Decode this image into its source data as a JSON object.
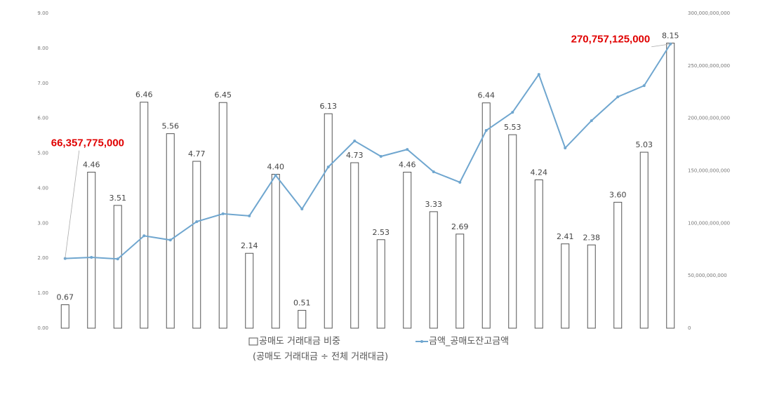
{
  "chart_data": {
    "type": "bar",
    "categories": [
      null,
      null,
      null,
      null,
      null,
      null,
      null,
      null,
      null,
      null,
      null,
      null,
      null,
      null,
      null,
      null,
      null,
      null,
      null,
      null,
      null,
      null,
      null,
      null
    ],
    "series": [
      {
        "name": "공매도 거래대금 비중",
        "color": "#555555",
        "values": [
          0.67,
          4.46,
          3.51,
          6.46,
          5.56,
          4.77,
          6.45,
          2.14,
          4.4,
          0.51,
          6.13,
          4.73,
          2.53,
          4.46,
          3.33,
          2.69,
          6.44,
          5.53,
          4.24,
          2.41,
          2.38,
          3.6,
          5.03,
          8.15
        ],
        "value_labels": [
          "0.67",
          "4.46",
          "3.51",
          "6.46",
          "5.56",
          "4.77",
          "6.45",
          "2.14",
          "4.40",
          "0.51",
          "6.13",
          "4.73",
          "2.53",
          "4.46",
          "3.33",
          "2.69",
          "6.44",
          "5.53",
          "4.24",
          "2.41",
          "2.38",
          "3.60",
          "5.03",
          "8.15"
        ]
      },
      {
        "name": "금액_공매도잔고금액",
        "color": "#6fa6cf",
        "type": "line",
        "axis": "y2",
        "values": [
          66357775000,
          67500000000,
          66000000000,
          88000000000,
          84000000000,
          101500000000,
          109000000000,
          107000000000,
          145600000000,
          113600000000,
          153600000000,
          178400000000,
          163700000000,
          170300000000,
          149000000000,
          139000000000,
          188400000000,
          205700000000,
          241800000000,
          171700000000,
          197700000000,
          220400000000,
          231100000000,
          270757125000
        ],
        "value_labels": [
          "66,357,775,000",
          null,
          null,
          null,
          null,
          null,
          null,
          null,
          null,
          null,
          null,
          null,
          null,
          null,
          null,
          null,
          null,
          null,
          null,
          null,
          null,
          null,
          null,
          "270,757,125,000"
        ]
      }
    ],
    "legend_note": "(공매도 거래대금 ÷ 전체 거래대금)",
    "ylim": [
      0,
      9
    ],
    "yticks": [
      {
        "value": 0,
        "label": "0.00"
      },
      {
        "value": 1,
        "label": "1.00"
      },
      {
        "value": 2,
        "label": "2.00"
      },
      {
        "value": 3,
        "label": "3.00"
      },
      {
        "value": 4,
        "label": "4.00"
      },
      {
        "value": 5,
        "label": "5.00"
      },
      {
        "value": 6,
        "label": "6.00"
      },
      {
        "value": 7,
        "label": "7.00"
      },
      {
        "value": 8,
        "label": "8.00"
      },
      {
        "value": 9,
        "label": "9.00"
      }
    ],
    "y2lim": [
      0,
      300000000000
    ],
    "y2ticks": [
      0,
      {
        "value": 50000000000,
        "label": "50,000,000,000"
      },
      {
        "value": 100000000000,
        "label": "100,000,000,000"
      },
      {
        "value": 150000000000,
        "label": "150,000,000,000"
      },
      {
        "value": 200000000000,
        "label": "200,000,000,000"
      },
      {
        "value": 250000000000,
        "label": "250,000,000,000"
      },
      {
        "value": 300000000000,
        "label": "300,000,000,000"
      }
    ],
    "legend": "bottom"
  }
}
